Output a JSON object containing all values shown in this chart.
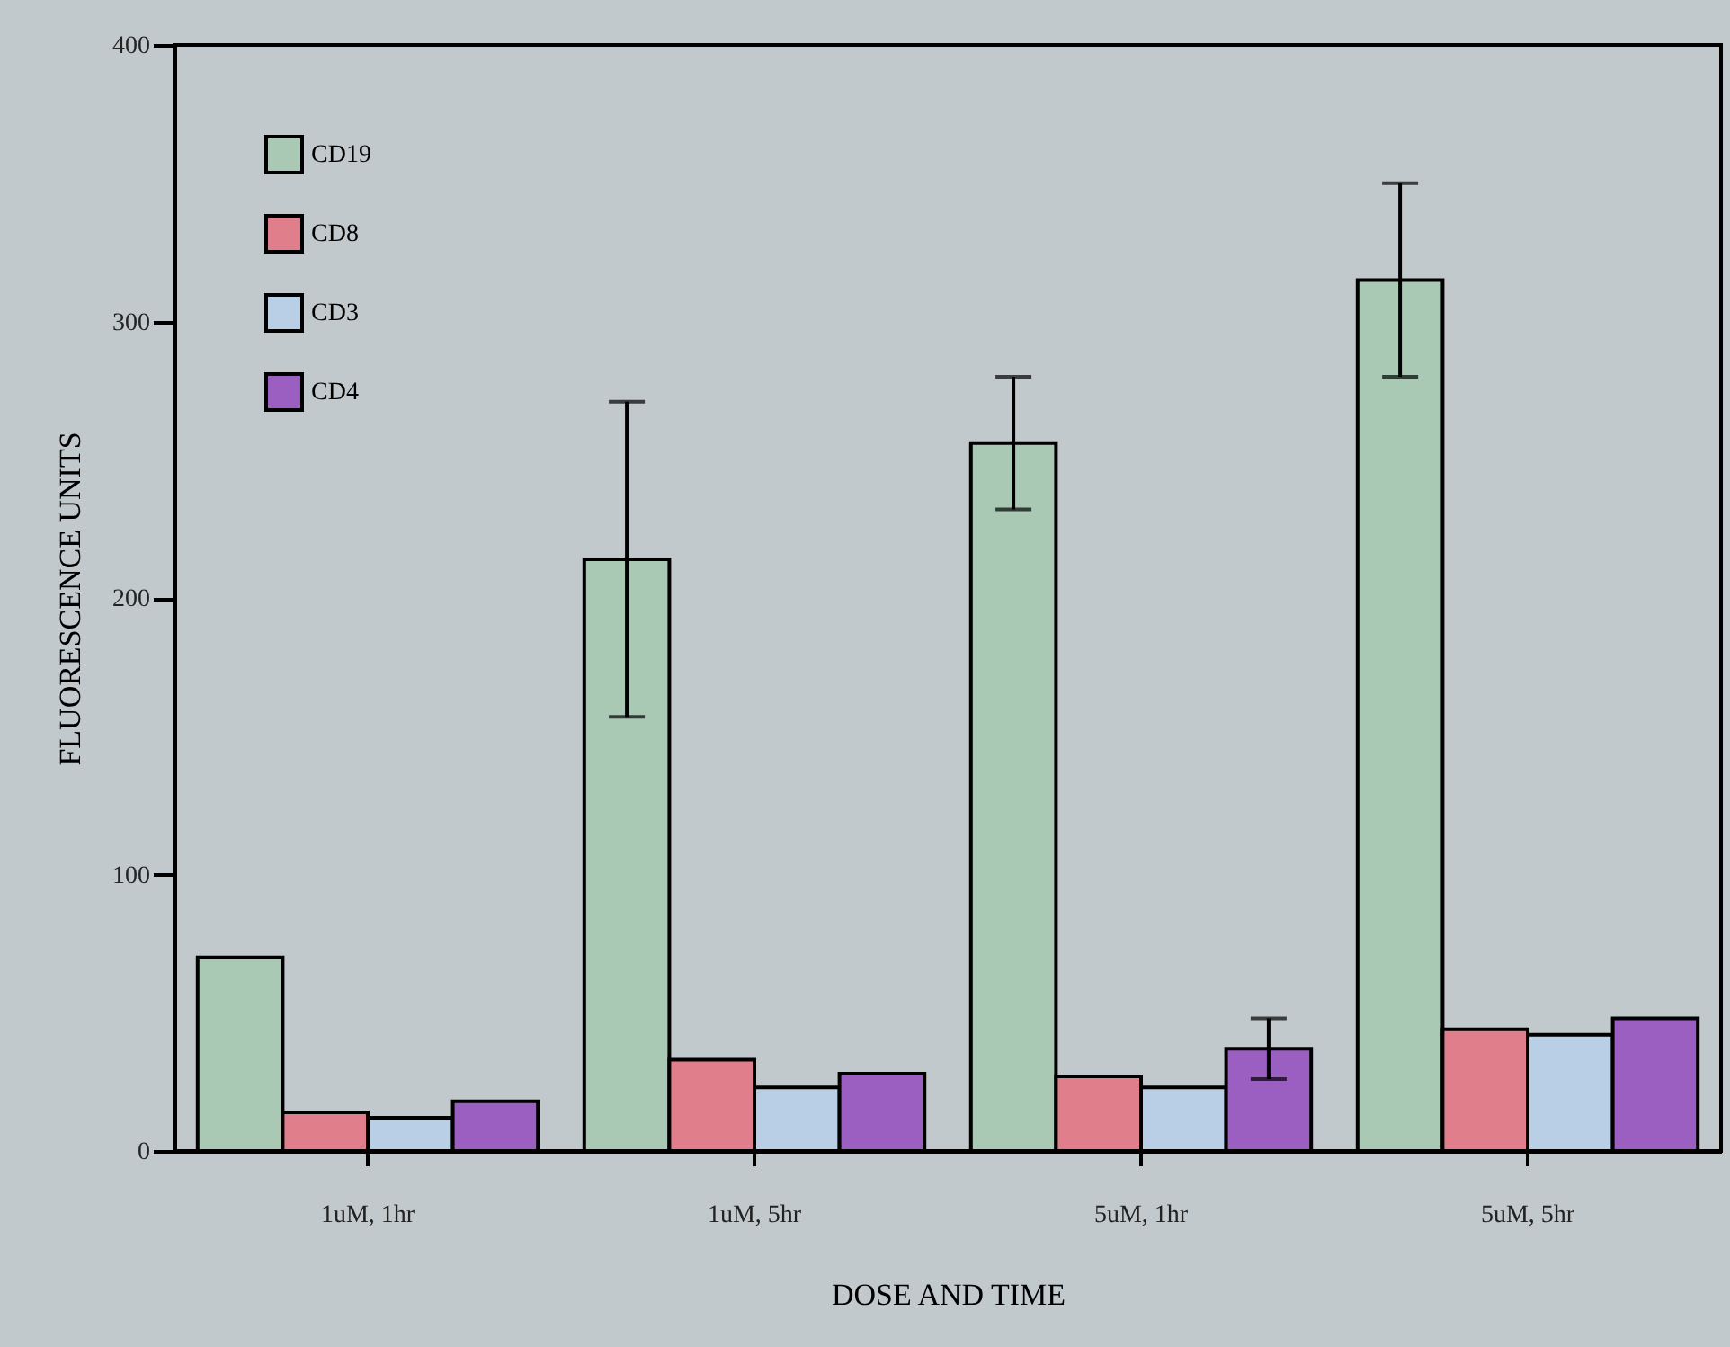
{
  "chart_data": {
    "type": "bar",
    "xlabel": "DOSE AND TIME",
    "ylabel": "FLUORESCENCE UNITS",
    "categories": [
      "1uM,  1hr",
      "1uM,  5hr",
      "5uM,  1hr",
      "5uM,  5hr"
    ],
    "series": [
      {
        "name": "CD19",
        "color": "#a9c9b4",
        "values": [
          70,
          214,
          256,
          315
        ],
        "errors": [
          null,
          57,
          24,
          35
        ]
      },
      {
        "name": "CD8",
        "color": "#e07f8b",
        "values": [
          14,
          33,
          27,
          44
        ]
      },
      {
        "name": "CD3",
        "color": "#b9cfe6",
        "values": [
          12,
          23,
          23,
          42
        ]
      },
      {
        "name": "CD4",
        "color": "#9b5fc2",
        "values": [
          18,
          28,
          37,
          48
        ],
        "errors": [
          null,
          null,
          11,
          null
        ]
      }
    ],
    "ylim": [
      0,
      400
    ],
    "yticks": [
      0,
      100,
      200,
      300,
      400
    ],
    "grid": false,
    "legend": "top left"
  }
}
